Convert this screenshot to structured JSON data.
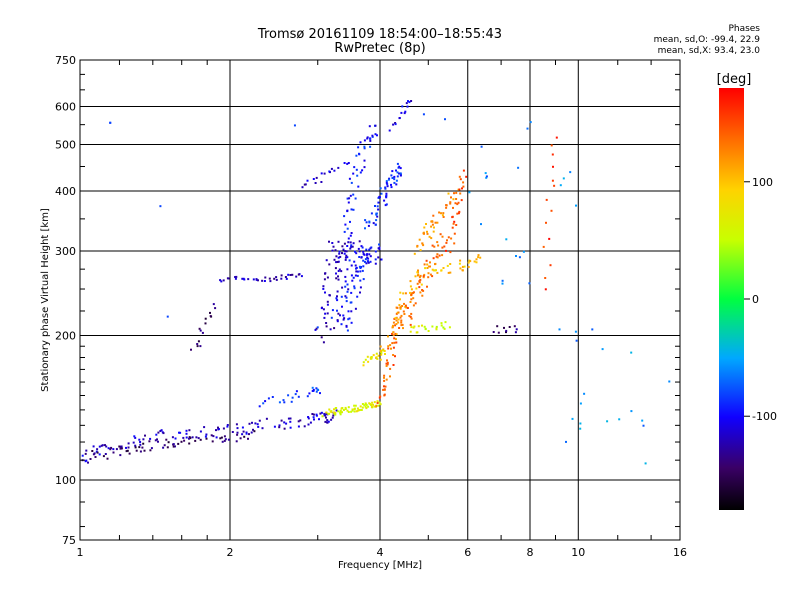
{
  "header": {
    "title": "Tromsø 20161109 18:54:00–18:55:43",
    "subtitle": "RwPretec (8p)",
    "stats_title": "Phases",
    "stats_o": "mean, sd,O: -99.4, 22.9",
    "stats_x": "mean, sd,X:  93.4, 23.0"
  },
  "colorbar": {
    "label": "[deg]",
    "min": -180,
    "max": 180,
    "ticks": [
      100,
      0,
      -100
    ],
    "tick_labels": [
      "100",
      "0",
      "-100"
    ]
  },
  "chart_data": {
    "type": "scatter",
    "xlabel": "Frequency [MHz]",
    "ylabel": "Stationary phase Virtual Height [km]",
    "xscale": "log",
    "yscale": "log",
    "xlim": [
      1,
      16
    ],
    "ylim": [
      75,
      750
    ],
    "x_ticks": [
      1,
      2,
      4,
      6,
      8,
      10,
      16
    ],
    "x_tick_labels": [
      "1",
      "2",
      "4",
      "6",
      "8",
      "10",
      "16"
    ],
    "y_ticks": [
      75,
      100,
      200,
      300,
      400,
      500,
      600,
      750
    ],
    "y_tick_labels": [
      "75",
      "100",
      "200",
      "300",
      "400",
      "500",
      "600",
      "750"
    ],
    "grid": true,
    "color_encodes": "phase",
    "traces": [
      {
        "x": [
          1.0,
          1.1,
          1.3,
          1.5,
          1.8,
          2.1,
          2.5,
          2.9,
          3.1,
          3.2
        ],
        "y": [
          108,
          117,
          121,
          124,
          126,
          128,
          131,
          133,
          135,
          137
        ],
        "phase": -115,
        "spread": 0.05,
        "n": 130
      },
      {
        "x": [
          1.05,
          1.2,
          1.4,
          1.6,
          1.9,
          2.2
        ],
        "y": [
          112,
          115,
          118,
          120,
          122,
          125
        ],
        "phase": -145,
        "spread": 0.04,
        "n": 70
      },
      {
        "x": [
          1.9,
          2.2,
          2.5,
          2.8
        ],
        "y": [
          262,
          262,
          263,
          268
        ],
        "phase": -120,
        "spread": 0.02,
        "n": 35
      },
      {
        "x": [
          1.7,
          1.75,
          1.8,
          1.85
        ],
        "y": [
          185,
          200,
          215,
          230
        ],
        "phase": -145,
        "spread": 0.03,
        "n": 15
      },
      {
        "x": [
          2.3,
          2.6,
          2.9,
          3.0
        ],
        "y": [
          145,
          148,
          152,
          156
        ],
        "phase": -85,
        "spread": 0.04,
        "n": 25
      },
      {
        "x": [
          3.1,
          3.2,
          3.3,
          3.5
        ],
        "y": [
          200,
          250,
          300,
          300
        ],
        "phase": -120,
        "spread": 0.08,
        "n": 70
      },
      {
        "x": [
          3.3,
          3.5,
          3.7,
          3.9
        ],
        "y": [
          210,
          250,
          290,
          300
        ],
        "phase": -100,
        "spread": 0.08,
        "n": 100
      },
      {
        "x": [
          3.4,
          3.45,
          3.6,
          3.75,
          3.9
        ],
        "y": [
          300,
          360,
          430,
          500,
          540
        ],
        "phase": -95,
        "spread": 0.05,
        "n": 55
      },
      {
        "x": [
          3.8,
          4.0,
          4.2,
          4.4
        ],
        "y": [
          330,
          380,
          420,
          450
        ],
        "phase": -90,
        "spread": 0.05,
        "n": 60
      },
      {
        "x": [
          4.2,
          4.4,
          4.5,
          4.6
        ],
        "y": [
          540,
          570,
          600,
          610
        ],
        "phase": -110,
        "spread": 0.03,
        "n": 15
      },
      {
        "x": [
          2.8,
          3.0,
          3.2,
          3.5
        ],
        "y": [
          405,
          420,
          440,
          455
        ],
        "phase": -115,
        "spread": 0.03,
        "n": 18
      },
      {
        "x": [
          3.1,
          3.4,
          3.7,
          4.0
        ],
        "y": [
          137,
          140,
          142,
          145
        ],
        "phase": 65,
        "spread": 0.03,
        "n": 70
      },
      {
        "x": [
          4.0,
          4.1,
          4.2,
          4.3,
          4.4
        ],
        "y": [
          145,
          160,
          180,
          205,
          230
        ],
        "phase": 140,
        "spread": 0.03,
        "n": 45
      },
      {
        "x": [
          4.0,
          4.3,
          4.6,
          4.9
        ],
        "y": [
          180,
          215,
          250,
          280
        ],
        "phase": 110,
        "spread": 0.05,
        "n": 55
      },
      {
        "x": [
          4.4,
          4.7,
          5.0,
          5.3
        ],
        "y": [
          205,
          240,
          275,
          320
        ],
        "phase": 135,
        "spread": 0.05,
        "n": 60
      },
      {
        "x": [
          4.8,
          5.0,
          5.3,
          5.7
        ],
        "y": [
          300,
          330,
          360,
          400
        ],
        "phase": 120,
        "spread": 0.05,
        "n": 45
      },
      {
        "x": [
          5.5,
          5.7,
          5.9
        ],
        "y": [
          300,
          360,
          440
        ],
        "phase": 150,
        "spread": 0.03,
        "n": 30
      },
      {
        "x": [
          3.7,
          3.9,
          4.1
        ],
        "y": [
          175,
          180,
          185
        ],
        "phase": 75,
        "spread": 0.03,
        "n": 20
      },
      {
        "x": [
          5.0,
          5.5,
          6.0,
          6.3
        ],
        "y": [
          270,
          275,
          282,
          290
        ],
        "phase": 95,
        "spread": 0.04,
        "n": 30
      },
      {
        "x": [
          4.6,
          5.0,
          5.5
        ],
        "y": [
          205,
          208,
          210
        ],
        "phase": 60,
        "spread": 0.03,
        "n": 22
      },
      {
        "x": [
          6.8,
          7.2,
          7.6
        ],
        "y": [
          206,
          206,
          206
        ],
        "phase": -140,
        "spread": 0.03,
        "n": 10
      },
      {
        "x": [
          8.6,
          8.7,
          8.8,
          8.9
        ],
        "y": [
          250,
          330,
          420,
          520
        ],
        "phase": 160,
        "spread": 0.03,
        "n": 14
      },
      {
        "x": [
          6.2,
          6.8,
          7.4,
          8.0,
          8.8,
          9.5,
          10.5,
          11.5,
          12.5
        ],
        "y": [
          520,
          460,
          380,
          310,
          240,
          180,
          150,
          130,
          120
        ],
        "phase": -60,
        "spread": 0.45,
        "n": 40
      },
      {
        "x": [
          1.15,
          1.45,
          1.5,
          2.7,
          3.0,
          4.9
        ],
        "y": [
          555,
          372,
          219,
          548,
          208,
          578
        ],
        "phase": -80,
        "spread": 0.0,
        "n": 1
      }
    ]
  }
}
